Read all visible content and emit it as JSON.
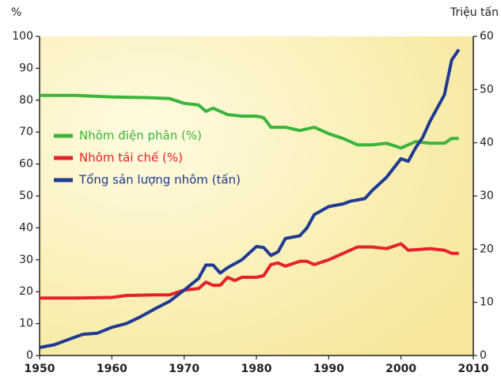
{
  "chart_data": {
    "type": "line",
    "y_label": "%",
    "y2_label": "Triệu tấn",
    "xlim": [
      1950,
      2010
    ],
    "xticks": [
      1950,
      1960,
      1970,
      1980,
      1990,
      2000,
      2010
    ],
    "ylim": [
      0,
      100
    ],
    "yticks": [
      0,
      10,
      20,
      30,
      40,
      50,
      60,
      70,
      80,
      90,
      100
    ],
    "y2lim": [
      0,
      60
    ],
    "y2ticks": [
      0,
      10,
      20,
      30,
      40,
      50,
      60
    ],
    "legend": "left",
    "series": [
      {
        "name": "Nhôm điện phân (%)",
        "color": "#3cb43c",
        "x": [
          1950,
          1955,
          1960,
          1965,
          1968,
          1970,
          1972,
          1973,
          1974,
          1976,
          1978,
          1980,
          1981,
          1982,
          1984,
          1986,
          1988,
          1990,
          1992,
          1994,
          1996,
          1998,
          2000,
          2002,
          2004,
          2006,
          2007,
          2008
        ],
        "values": [
          81.5,
          81.5,
          81,
          80.8,
          80.5,
          79,
          78.5,
          76.5,
          77.5,
          75.5,
          75,
          75,
          74.5,
          71.5,
          71.5,
          70.5,
          71.5,
          69.5,
          68,
          66,
          66,
          66.5,
          65,
          67,
          66.5,
          66.5,
          68,
          68
        ]
      },
      {
        "name": "Nhôm tái chế (%)",
        "color": "#e8202a",
        "x": [
          1950,
          1955,
          1960,
          1962,
          1966,
          1968,
          1970,
          1972,
          1973,
          1974,
          1975,
          1976,
          1977,
          1978,
          1980,
          1981,
          1982,
          1983,
          1984,
          1986,
          1987,
          1988,
          1990,
          1992,
          1994,
          1996,
          1998,
          2000,
          2001,
          2004,
          2006,
          2007,
          2008
        ],
        "values": [
          18,
          18,
          18.2,
          18.8,
          19,
          19,
          20.5,
          21,
          23,
          22,
          22,
          24.5,
          23.5,
          24.5,
          24.5,
          25,
          28.5,
          29,
          28,
          29.5,
          29.5,
          28.5,
          30,
          32,
          34,
          34,
          33.5,
          35,
          33,
          33.5,
          33,
          32,
          32
        ]
      },
      {
        "name": "Tổng sản lượng nhôm (tấn)",
        "color": "#1f3a93",
        "axis": "y2",
        "x": [
          1950,
          1952,
          1954,
          1956,
          1958,
          1960,
          1962,
          1964,
          1966,
          1968,
          1970,
          1972,
          1973,
          1974,
          1975,
          1976,
          1978,
          1980,
          1981,
          1982,
          1983,
          1984,
          1986,
          1987,
          1988,
          1990,
          1992,
          1993,
          1995,
          1996,
          1998,
          2000,
          2001,
          2002,
          2003,
          2004,
          2005,
          2006,
          2007,
          2008
        ],
        "values": [
          1.5,
          2,
          3,
          4,
          4.2,
          5.3,
          6,
          7.3,
          8.8,
          10.2,
          12.3,
          14.5,
          17,
          17,
          15.5,
          16.5,
          18,
          20.5,
          20.3,
          18.8,
          19.5,
          22,
          22.5,
          24,
          26.5,
          28,
          28.5,
          29,
          29.5,
          31,
          33.5,
          37,
          36.5,
          39,
          41,
          44,
          46.5,
          49,
          55.5,
          57.5
        ]
      }
    ]
  }
}
